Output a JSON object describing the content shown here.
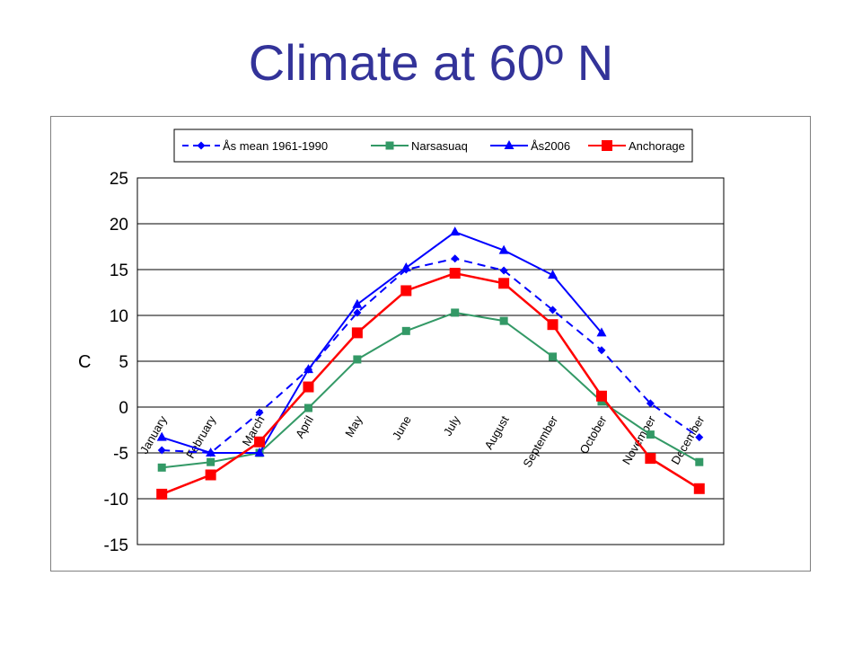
{
  "slide": {
    "title": "Climate at 60º N"
  },
  "chart_data": {
    "type": "line",
    "categories": [
      "January",
      "February",
      "March",
      "April",
      "May",
      "June",
      "July",
      "August",
      "September",
      "October",
      "November",
      "December"
    ],
    "ylabel": "C",
    "xlabel": "",
    "ylim": [
      -15,
      25
    ],
    "yticks": [
      25,
      20,
      15,
      10,
      5,
      0,
      -5,
      -10,
      -15
    ],
    "grid": true,
    "legend_position": "top",
    "series": [
      {
        "name": "Ås mean 1961-1990",
        "color": "#0000ff",
        "dash": true,
        "marker": "diamond",
        "values": [
          -4.7,
          -5.0,
          -0.6,
          4.1,
          10.3,
          15.0,
          16.2,
          14.9,
          10.6,
          6.2,
          0.4,
          -3.3
        ]
      },
      {
        "name": "Narsasuaq",
        "color": "#339966",
        "dash": false,
        "marker": "square",
        "values": [
          -6.6,
          -6.0,
          -5.0,
          -0.1,
          5.2,
          8.3,
          10.3,
          9.4,
          5.5,
          0.6,
          -3.0,
          -6.0
        ]
      },
      {
        "name": "Ås2006",
        "color": "#0000ff",
        "dash": false,
        "marker": "triangle",
        "values": [
          -3.3,
          -5.0,
          -5.0,
          4.1,
          11.2,
          15.2,
          19.1,
          17.1,
          14.4,
          8.1,
          null,
          null
        ]
      },
      {
        "name": "Anchorage",
        "color": "#ff0000",
        "dash": false,
        "marker": "bigsquare",
        "values": [
          -9.5,
          -7.4,
          -3.8,
          2.2,
          8.1,
          12.7,
          14.6,
          13.5,
          9.0,
          1.2,
          -5.6,
          -8.9
        ]
      }
    ]
  }
}
